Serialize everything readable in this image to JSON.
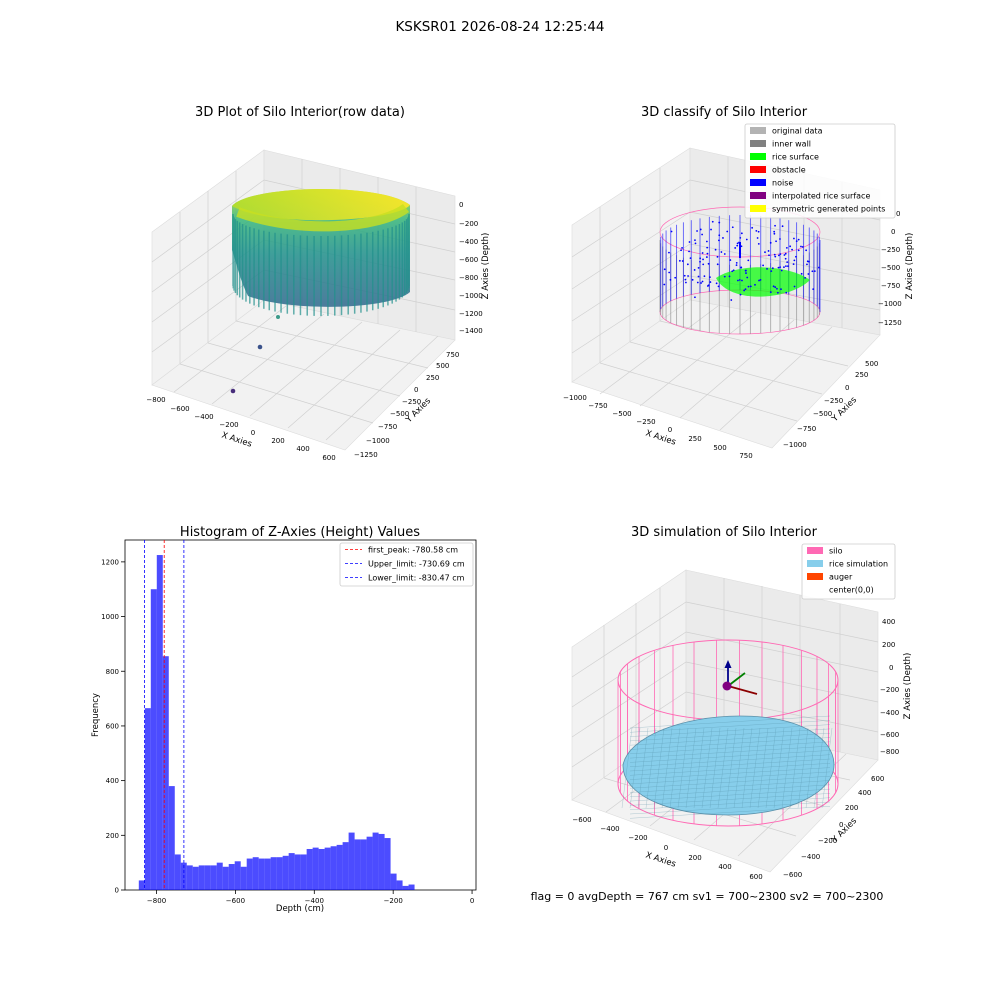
{
  "suptitle": "KSKSR01 2026-08-24 12:25:44",
  "footer": "flag = 0     avgDepth = 767 cm  sv1 = 700~2300  sv2 = 700~2300",
  "chart_data": [
    {
      "type": "scatter3d",
      "title": "3D Plot of Silo Interior(row data)",
      "xlabel": "X Axies",
      "ylabel": "Y Axies",
      "zlabel": "Z Axies (Depth)",
      "xticks": [
        "−800",
        "−600",
        "−400",
        "−200",
        "0",
        "200",
        "400",
        "600"
      ],
      "yticks": [
        "−1250",
        "−1000",
        "−750",
        "−500",
        "−250",
        "0",
        "250",
        "500",
        "750"
      ],
      "zticks": [
        "0",
        "−200",
        "−400",
        "−600",
        "−800",
        "−1000",
        "−1200",
        "−1400"
      ],
      "colormap": "viridis",
      "isolated_points": [
        {
          "x": -200,
          "y": -1100,
          "z": -1500
        },
        {
          "x": -100,
          "y": -700,
          "z": -1400
        },
        {
          "x": 0,
          "y": -500,
          "z": -1300
        }
      ]
    },
    {
      "type": "scatter3d",
      "title": "3D classify of Silo Interior",
      "xlabel": "X Axies",
      "ylabel": "Y Axies",
      "zlabel": "Z Axies (Depth)",
      "xticks": [
        "−1000",
        "−750",
        "−500",
        "−250",
        "0",
        "250",
        "500",
        "750"
      ],
      "yticks": [
        "−1000",
        "−750",
        "−500",
        "−250",
        "0",
        "250",
        "500"
      ],
      "zticks": [
        "0",
        "−250",
        "−500",
        "−750",
        "−1000",
        "−1250"
      ],
      "zticks_partial": "0",
      "legend": [
        {
          "label": "original data",
          "color": "#b3b3b3"
        },
        {
          "label": "inner wall",
          "color": "#808080"
        },
        {
          "label": "rice surface",
          "color": "#00ff00"
        },
        {
          "label": "obstacle",
          "color": "#ff0000"
        },
        {
          "label": "noise",
          "color": "#0000ff"
        },
        {
          "label": "interpolated rice surface",
          "color": "#800080"
        },
        {
          "label": "symmetric generated points",
          "color": "#ffff00"
        }
      ],
      "legend_position": "top-right"
    },
    {
      "type": "bar",
      "title": "Histogram of Z-Axies (Height) Values",
      "xlabel": "Depth (cm)",
      "ylabel": "Frequency",
      "xlim": [
        -880,
        10
      ],
      "ylim": [
        0,
        1280
      ],
      "xticks": [
        -800,
        -600,
        -400,
        -200,
        0
      ],
      "xtick_labels": [
        "−800",
        "−600",
        "−400",
        "−200",
        "0"
      ],
      "yticks": [
        0,
        200,
        400,
        600,
        800,
        1000,
        1200
      ],
      "bin_width": 15.2,
      "bin_start": -845,
      "values": [
        35,
        665,
        1100,
        1225,
        855,
        380,
        130,
        100,
        90,
        85,
        90,
        90,
        90,
        100,
        85,
        95,
        105,
        85,
        115,
        120,
        115,
        115,
        120,
        120,
        125,
        135,
        130,
        130,
        150,
        155,
        150,
        155,
        160,
        165,
        175,
        210,
        185,
        185,
        195,
        210,
        205,
        190,
        60,
        35,
        15,
        20
      ],
      "bar_color": "#0000ff",
      "vlines": [
        {
          "label": "first_peak: -780.58 cm",
          "x": -780.58,
          "color": "#ff0000"
        },
        {
          "label": "Upper_limit: -730.69 cm",
          "x": -730.69,
          "color": "#0000ff"
        },
        {
          "label": "Lower_limit: -830.47 cm",
          "x": -830.47,
          "color": "#0000ff"
        }
      ],
      "legend_position": "top-right"
    },
    {
      "type": "surface3d",
      "title": "3D simulation of Silo Interior",
      "xlabel": "X Axies",
      "ylabel": "Y Axies",
      "zlabel": "Z Axies (Depth)",
      "xticks": [
        "−600",
        "−400",
        "−200",
        "0",
        "200",
        "400",
        "600"
      ],
      "yticks": [
        "−600",
        "−400",
        "−200",
        "0",
        "200",
        "400",
        "600"
      ],
      "zticks": [
        "400",
        "200",
        "0",
        "−200",
        "−400",
        "−600",
        "−800"
      ],
      "legend": [
        {
          "label": "silo",
          "color": "#ff69b4"
        },
        {
          "label": "rice simulation",
          "color": "#87ceeb"
        },
        {
          "label": "auger",
          "color": "#ff4500"
        },
        {
          "label": "center(0,0)",
          "color": "none"
        }
      ],
      "legend_position": "top-right"
    }
  ]
}
